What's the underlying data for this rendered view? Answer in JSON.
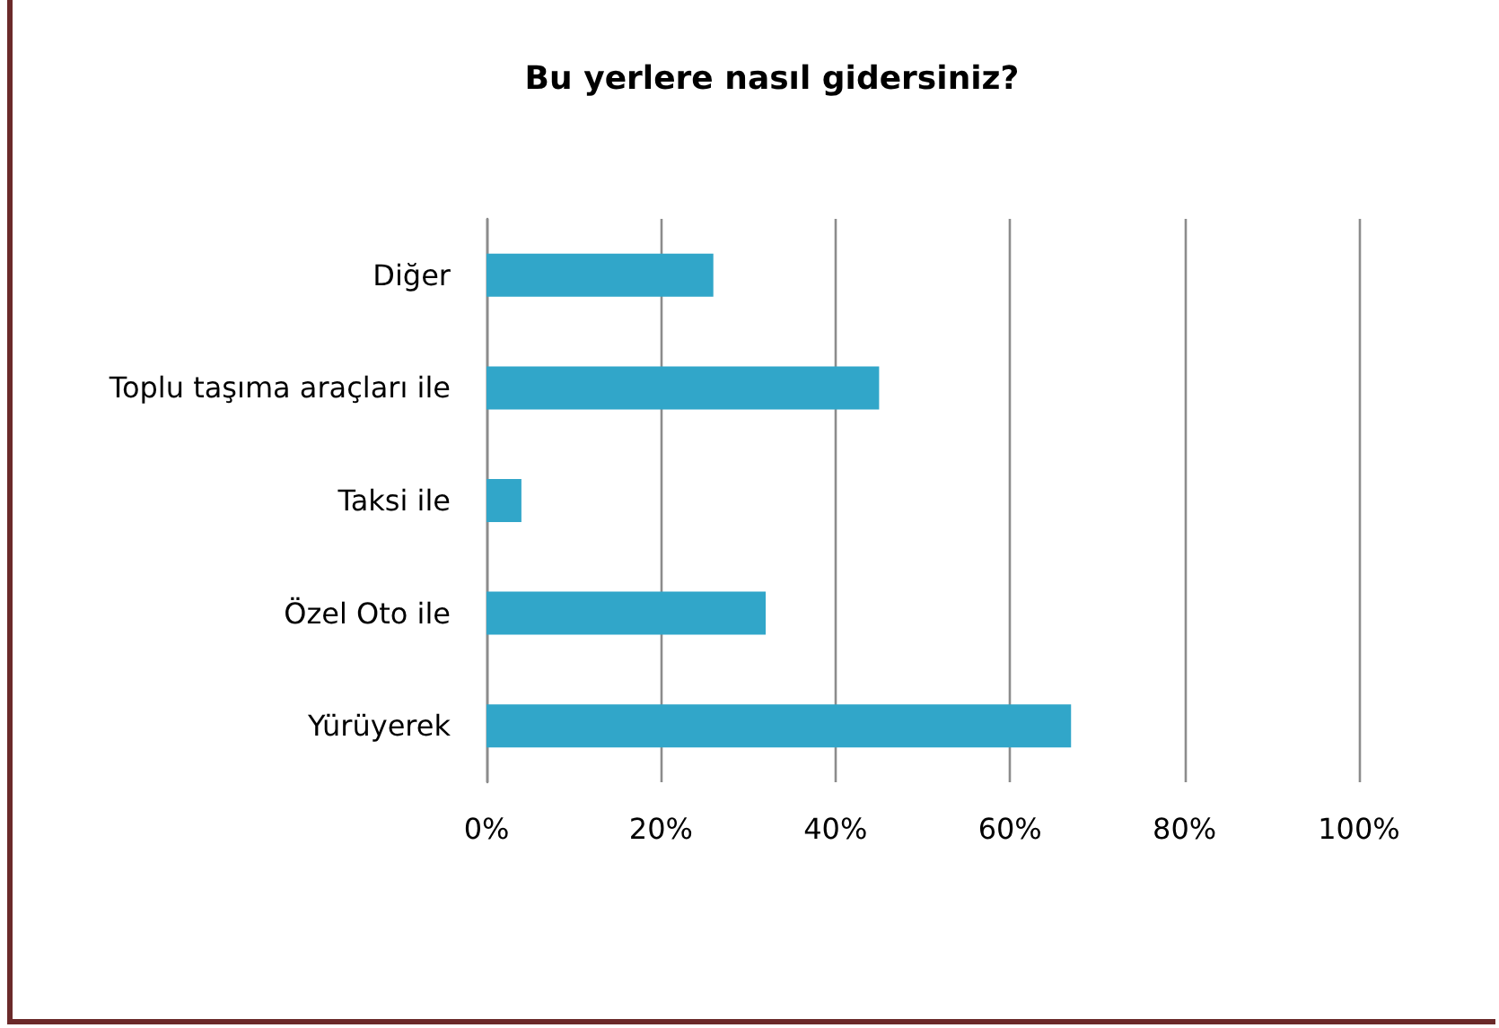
{
  "chart_data": {
    "type": "bar",
    "orientation": "horizontal",
    "title": "Bu yerlere nasıl gidersiniz?",
    "categories": [
      "Diğer",
      "Toplu taşıma araçları ile",
      "Taksi ile",
      "Özel Oto ile",
      "Yürüyerek"
    ],
    "values": [
      26,
      45,
      4,
      32,
      67
    ],
    "color": "#31a6c9",
    "xlim": [
      0,
      100
    ],
    "xticks": [
      {
        "value": 0,
        "label": "0%"
      },
      {
        "value": 20,
        "label": "20%"
      },
      {
        "value": 40,
        "label": "40%"
      },
      {
        "value": 60,
        "label": "60%"
      },
      {
        "value": 80,
        "label": "80%"
      },
      {
        "value": 100,
        "label": "100%"
      }
    ],
    "grid": "x"
  }
}
